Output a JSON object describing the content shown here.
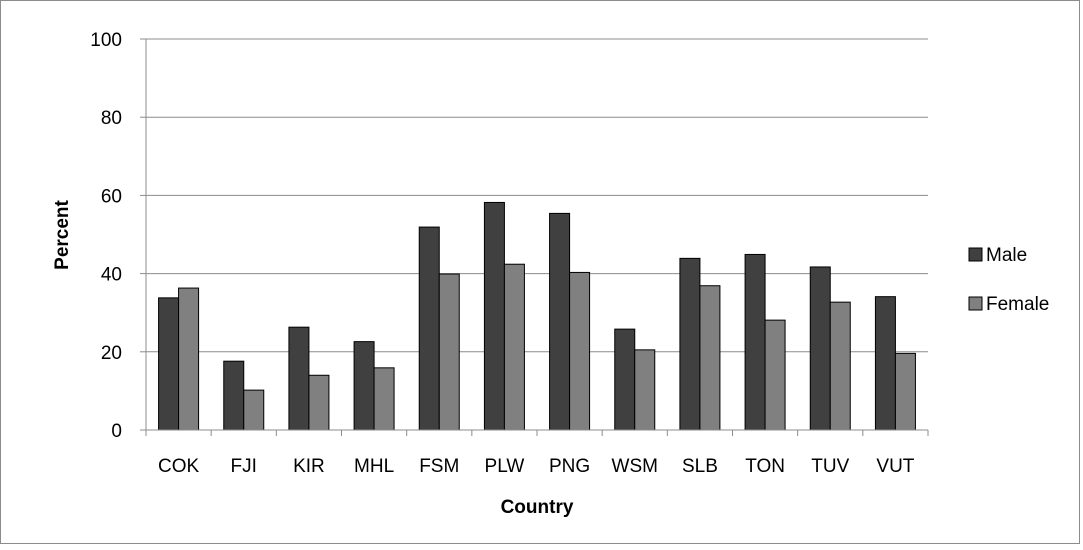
{
  "chart_data": {
    "type": "bar",
    "title": "",
    "xlabel": "Country",
    "ylabel": "Percent",
    "ylim": [
      0,
      100
    ],
    "yticks": [
      0,
      20,
      40,
      60,
      80,
      100
    ],
    "grid": true,
    "legend_position": "right",
    "categories": [
      "COK",
      "FJI",
      "KIR",
      "MHL",
      "FSM",
      "PLW",
      "PNG",
      "WSM",
      "SLB",
      "TON",
      "TUV",
      "VUT"
    ],
    "series": [
      {
        "name": "Male",
        "color": "#404040",
        "values": [
          33.8,
          17.6,
          26.3,
          22.6,
          51.9,
          58.2,
          55.4,
          25.8,
          43.9,
          44.9,
          41.7,
          34.1
        ]
      },
      {
        "name": "Female",
        "color": "#808080",
        "values": [
          36.3,
          10.2,
          14.0,
          15.9,
          39.9,
          42.4,
          40.3,
          20.5,
          36.9,
          28.1,
          32.7,
          19.6
        ]
      }
    ]
  }
}
